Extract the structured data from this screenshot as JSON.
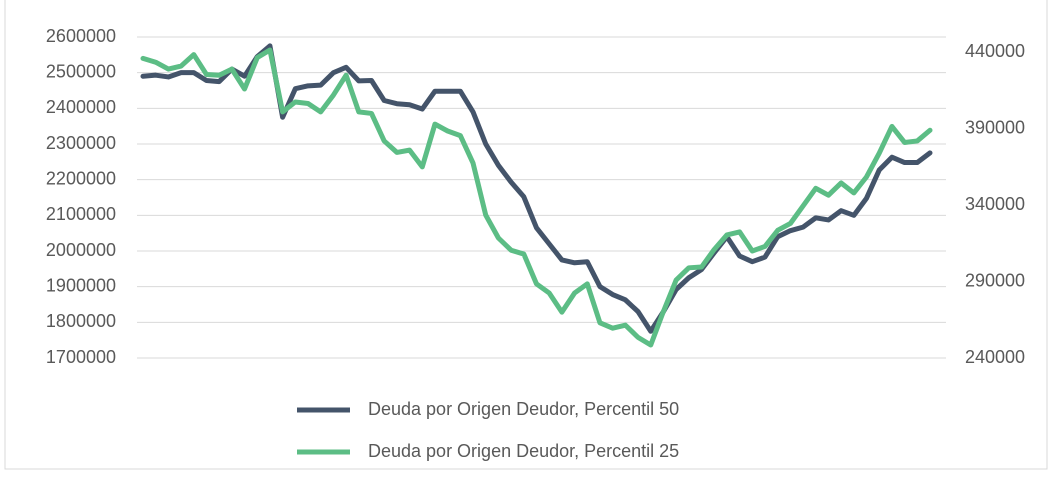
{
  "chart_data": {
    "type": "line",
    "categories": [
      null,
      null,
      null,
      null,
      null,
      null,
      null,
      null,
      null,
      null,
      null,
      null,
      null,
      null,
      null,
      null,
      null,
      null,
      null,
      null,
      null,
      null,
      null,
      null,
      null,
      null,
      null,
      null,
      null,
      null,
      null,
      null,
      null,
      null,
      null,
      null,
      null,
      null,
      null,
      null,
      null,
      null,
      null,
      null,
      null,
      null,
      null,
      null,
      null,
      null,
      null,
      null,
      null,
      null,
      null,
      null,
      null,
      null,
      null,
      null,
      null,
      null,
      null
    ],
    "ylim": [
      1700000,
      2600000
    ],
    "yticks": [
      1700000,
      1800000,
      1900000,
      2000000,
      2100000,
      2200000,
      2300000,
      2400000,
      2500000,
      2600000
    ],
    "y2lim": [
      240000,
      450000
    ],
    "y2ticks": [
      240000,
      290000,
      340000,
      390000,
      440000
    ],
    "grid": true,
    "legend": "bottom",
    "series": [
      {
        "name": "Deuda por Origen Deudor, Percentil 50",
        "color": "#44546a",
        "values": [
          2490000,
          2493000,
          2488000,
          2500000,
          2500000,
          2478000,
          2475000,
          2510000,
          2490000,
          2545000,
          2575000,
          2375000,
          2455000,
          2463000,
          2465000,
          2500000,
          2515000,
          2477000,
          2478000,
          2422000,
          2413000,
          2410000,
          2398000,
          2448000,
          2448000,
          2448000,
          2390000,
          2300000,
          2240000,
          2193000,
          2152000,
          2065000,
          2020000,
          1975000,
          1967000,
          1970000,
          1900000,
          1878000,
          1863000,
          1830000,
          1775000,
          1830000,
          1892000,
          1925000,
          1948000,
          1995000,
          2040000,
          1986000,
          1970000,
          1983000,
          2040000,
          2057000,
          2067000,
          2093000,
          2087000,
          2113000,
          2100000,
          2148000,
          2227000,
          2263000,
          2248000,
          2248000,
          2275000
        ]
      },
      {
        "name": "Deuda por Origen Deudor, Percentil 25",
        "color": "#5cbd85",
        "axis": "y2",
        "values": [
          436000,
          433500,
          429000,
          431000,
          438500,
          425500,
          425000,
          429000,
          416000,
          436500,
          441500,
          401000,
          407500,
          406500,
          401000,
          412000,
          425000,
          401000,
          400000,
          382000,
          374500,
          376000,
          365000,
          393000,
          388500,
          385500,
          367500,
          333500,
          318500,
          310500,
          308000,
          288500,
          282500,
          270000,
          282500,
          288500,
          263000,
          259500,
          261500,
          253500,
          248500,
          270500,
          291000,
          299000,
          299500,
          311000,
          320500,
          322500,
          310000,
          313000,
          323500,
          328000,
          339500,
          351000,
          346500,
          354500,
          348000,
          358500,
          374000,
          391500,
          381000,
          382000,
          389000
        ]
      }
    ]
  }
}
